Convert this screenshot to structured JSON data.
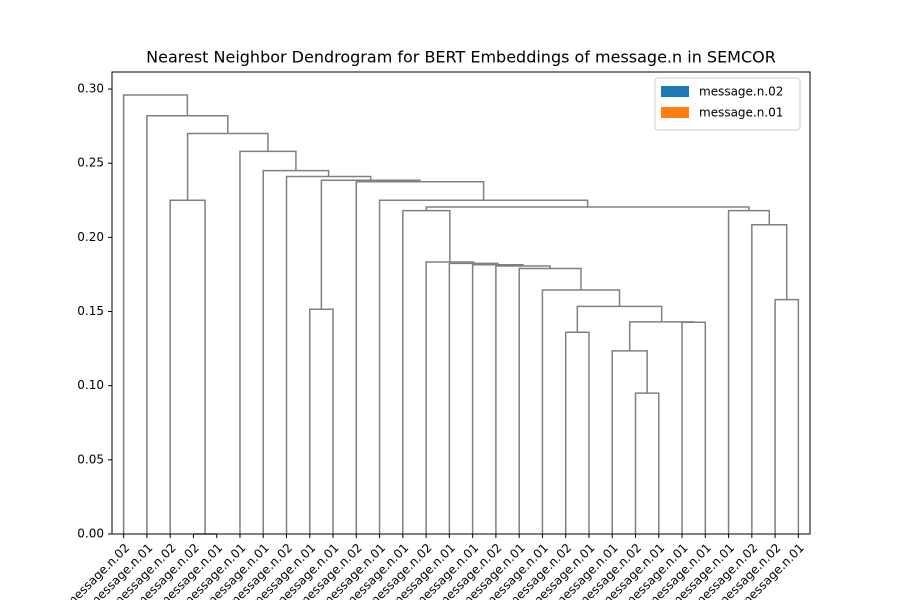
{
  "chart_data": {
    "type": "dendrogram",
    "title": "Nearest Neighbor Dendrogram for BERT Embeddings of message.n in SEMCOR",
    "ylim": [
      0,
      0.3115
    ],
    "yticks": [
      {
        "value": 0,
        "label": "0.00"
      },
      {
        "value": 0.05,
        "label": "0.05"
      },
      {
        "value": 0.1,
        "label": "0.10"
      },
      {
        "value": 0.15,
        "label": "0.15"
      },
      {
        "value": 0.2,
        "label": "0.20"
      },
      {
        "value": 0.25,
        "label": "0.25"
      },
      {
        "value": 0.3,
        "label": "0.30"
      }
    ],
    "link_color": "#808080",
    "legend": "upper right",
    "series": [
      {
        "name": "message.n.02",
        "color": "#1f77b4"
      },
      {
        "name": "message.n.01",
        "color": "#ff7f0e"
      }
    ],
    "labels": [
      "message.n.02",
      "message.n.01",
      "message.n.02",
      "message.n.02",
      "message.n.01",
      "message.n.01",
      "message.n.01",
      "message.n.02",
      "message.n.01",
      "message.n.01",
      "message.n.02",
      "message.n.01",
      "message.n.01",
      "message.n.02",
      "message.n.01",
      "message.n.01",
      "message.n.02",
      "message.n.01",
      "message.n.01",
      "message.n.02",
      "message.n.01",
      "message.n.01",
      "message.n.02",
      "message.n.01",
      "message.n.01",
      "message.n.01",
      "message.n.01",
      "message.n.02",
      "message.n.02",
      "message.n.01"
    ],
    "tree": {
      "height": 0.296,
      "children": [
        0,
        {
          "height": 0.282,
          "children": [
            1,
            {
              "height": 0.27,
              "children": [
                {
                  "height": 0.225,
                  "children": [
                    2,
                    {
                      "height": 0,
                      "children": [
                        3,
                        4
                      ]
                    }
                  ]
                },
                {
                  "height": 0.258,
                  "children": [
                    5,
                    {
                      "height": 0.245,
                      "children": [
                        6,
                        {
                          "height": 0.241,
                          "children": [
                            7,
                            {
                              "height": 0.2385,
                              "children": [
                                {
                                  "height": 0.1515,
                                  "children": [
                                    8,
                                    9
                                  ]
                                },
                                {
                                  "height": 0.2375,
                                  "children": [
                                    10,
                                    {
                                      "height": 0.225,
                                      "children": [
                                        11,
                                        {
                                          "height": 0.2205,
                                          "children": [
                                            {
                                              "height": 0.218,
                                              "children": [
                                                12,
                                                {
                                                  "height": 0.1834,
                                                  "children": [
                                                    13,
                                                    {
                                                      "height": 0.1825,
                                                      "children": [
                                                        14,
                                                        {
                                                          "height": 0.1815,
                                                          "children": [
                                                            15,
                                                            {
                                                              "height": 0.1807,
                                                              "children": [
                                                                16,
                                                                {
                                                                  "height": 0.179,
                                                                  "children": [
                                                                    17,
                                                                    {
                                                                      "height": 0.1645,
                                                                      "children": [
                                                                        18,
                                                                        {
                                                                          "height": 0.1535,
                                                                          "children": [
                                                                            {
                                                                              "height": 0.136,
                                                                              "children": [
                                                                                19,
                                                                                20
                                                                              ]
                                                                            },
                                                                            {
                                                                              "height": 0.143,
                                                                              "children": [
                                                                                {
                                                                                  "height": 0.1235,
                                                                                  "children": [
                                                                                    21,
                                                                                    {
                                                                                      "height": 0.095,
                                                                                      "children": [
                                                                                        22,
                                                                                        23
                                                                                      ]
                                                                                    }
                                                                                  ]
                                                                                },
                                                                                {
                                                                                  "height": 0.1428,
                                                                                  "children": [
                                                                                    24,
                                                                                    25
                                                                                  ]
                                                                                }
                                                                              ]
                                                                            }
                                                                          ]
                                                                        }
                                                                      ]
                                                                    }
                                                                  ]
                                                                }
                                                              ]
                                                            }
                                                          ]
                                                        }
                                                      ]
                                                    }
                                                  ]
                                                }
                                              ]
                                            },
                                            {
                                              "height": 0.218,
                                              "children": [
                                                26,
                                                {
                                                  "height": 0.2085,
                                                  "children": [
                                                    27,
                                                    {
                                                      "height": 0.158,
                                                      "children": [
                                                        28,
                                                        29
                                                      ]
                                                    }
                                                  ]
                                                }
                                              ]
                                            }
                                          ]
                                        }
                                      ]
                                    }
                                  ]
                                }
                              ]
                            }
                          ]
                        }
                      ]
                    }
                  ]
                }
              ]
            }
          ]
        }
      ]
    }
  }
}
